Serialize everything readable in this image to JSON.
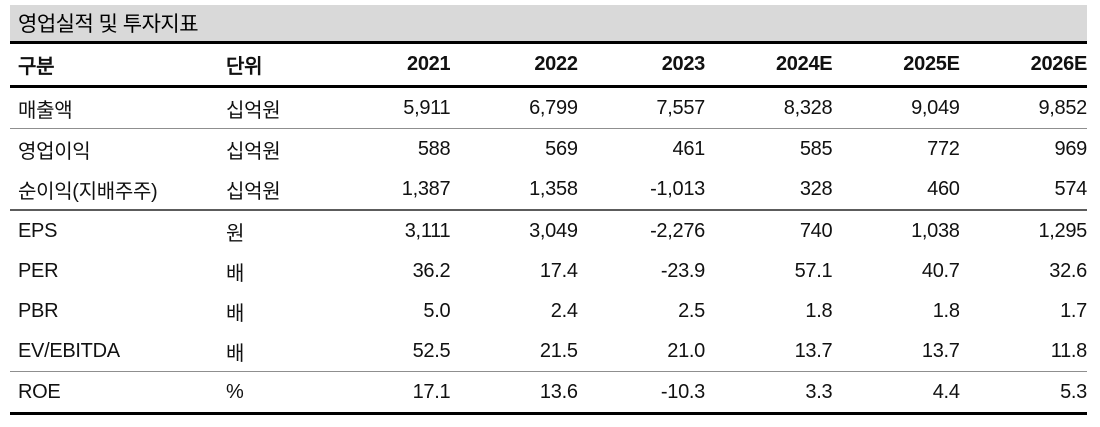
{
  "table": {
    "title": "영업실적 및 투자지표",
    "columns": [
      "구분",
      "단위",
      "2021",
      "2022",
      "2023",
      "2024E",
      "2025E",
      "2026E"
    ],
    "rows": [
      {
        "label": "매출액",
        "unit": "십억원",
        "values": [
          "5,911",
          "6,799",
          "7,557",
          "8,328",
          "9,049",
          "9,852"
        ]
      },
      {
        "label": "영업이익",
        "unit": "십억원",
        "values": [
          "588",
          "569",
          "461",
          "585",
          "772",
          "969"
        ]
      },
      {
        "label": "순이익(지배주주)",
        "unit": "십억원",
        "values": [
          "1,387",
          "1,358",
          "-1,013",
          "328",
          "460",
          "574"
        ]
      },
      {
        "label": "EPS",
        "unit": "원",
        "values": [
          "3,111",
          "3,049",
          "-2,276",
          "740",
          "1,038",
          "1,295"
        ]
      },
      {
        "label": "PER",
        "unit": "배",
        "values": [
          "36.2",
          "17.4",
          "-23.9",
          "57.1",
          "40.7",
          "32.6"
        ]
      },
      {
        "label": "PBR",
        "unit": "배",
        "values": [
          "5.0",
          "2.4",
          "2.5",
          "1.8",
          "1.8",
          "1.7"
        ]
      },
      {
        "label": "EV/EBITDA",
        "unit": "배",
        "values": [
          "52.5",
          "21.5",
          "21.0",
          "13.7",
          "13.7",
          "11.8"
        ]
      },
      {
        "label": "ROE",
        "unit": "%",
        "values": [
          "17.1",
          "13.6",
          "-10.3",
          "3.3",
          "4.4",
          "5.3"
        ]
      }
    ],
    "colors": {
      "title_background": "#d9d9d9",
      "heavy_rule": "#000000",
      "light_rule": "#8f8f8f",
      "text": "#111111"
    }
  },
  "chart_data": {
    "type": "table",
    "title": "영업실적 및 투자지표",
    "categories": [
      "2021",
      "2022",
      "2023",
      "2024E",
      "2025E",
      "2026E"
    ],
    "series": [
      {
        "name": "매출액 (십억원)",
        "values": [
          5911,
          6799,
          7557,
          8328,
          9049,
          9852
        ]
      },
      {
        "name": "영업이익 (십억원)",
        "values": [
          588,
          569,
          461,
          585,
          772,
          969
        ]
      },
      {
        "name": "순이익(지배주주) (십억원)",
        "values": [
          1387,
          1358,
          -1013,
          328,
          460,
          574
        ]
      },
      {
        "name": "EPS (원)",
        "values": [
          3111,
          3049,
          -2276,
          740,
          1038,
          1295
        ]
      },
      {
        "name": "PER (배)",
        "values": [
          36.2,
          17.4,
          -23.9,
          57.1,
          40.7,
          32.6
        ]
      },
      {
        "name": "PBR (배)",
        "values": [
          5.0,
          2.4,
          2.5,
          1.8,
          1.8,
          1.7
        ]
      },
      {
        "name": "EV/EBITDA (배)",
        "values": [
          52.5,
          21.5,
          21.0,
          13.7,
          13.7,
          11.8
        ]
      },
      {
        "name": "ROE (%)",
        "values": [
          17.1,
          13.6,
          -10.3,
          3.3,
          4.4,
          5.3
        ]
      }
    ]
  }
}
